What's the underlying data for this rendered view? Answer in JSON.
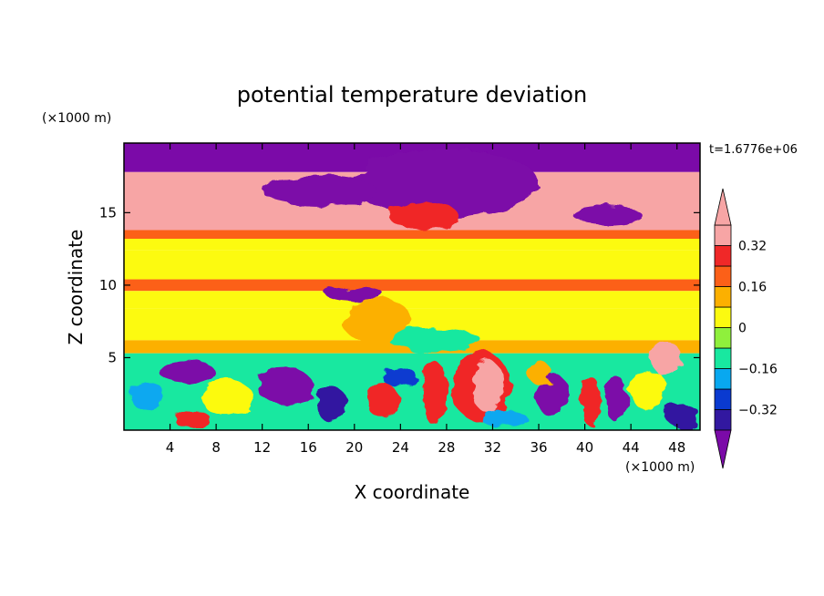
{
  "chart_data": {
    "type": "heatmap",
    "title": "potential temperature deviation",
    "xlabel": "X coordinate",
    "ylabel": "Z coordinate",
    "x_unit": "(×1000 m)",
    "y_unit": "(×1000 m)",
    "time_label": "t=1.6776e+06",
    "xlim": [
      0,
      50
    ],
    "ylim": [
      0,
      19.8
    ],
    "x_ticks": [
      4,
      8,
      12,
      16,
      20,
      24,
      28,
      32,
      36,
      40,
      44,
      48
    ],
    "y_ticks": [
      5,
      10,
      15
    ],
    "x_tick_labels": [
      "4",
      "8",
      "12",
      "16",
      "20",
      "24",
      "28",
      "32",
      "36",
      "40",
      "44",
      "48"
    ],
    "y_tick_labels": [
      "5",
      "10",
      "15"
    ],
    "colorbar": {
      "levels": [
        -0.4,
        -0.32,
        -0.24,
        -0.16,
        -0.08,
        0,
        0.08,
        0.16,
        0.24,
        0.32,
        0.4
      ],
      "tick_values": [
        0.32,
        0.16,
        0,
        -0.16,
        -0.32
      ],
      "tick_labels": [
        "0.32",
        "0.16",
        "0",
        "−0.16",
        "−0.32"
      ],
      "colors": [
        "#7b0aa8",
        "#3218a0",
        "#0a3ad0",
        "#08a8f0",
        "#18e8a0",
        "#8ff03c",
        "#fcfa10",
        "#fcb000",
        "#fc6018",
        "#f02828",
        "#f7a5a5"
      ],
      "extend": "both"
    },
    "layers": [
      {
        "z": [
          17.8,
          19.8
        ],
        "value": -0.45
      },
      {
        "z": [
          13.8,
          17.8
        ],
        "value": 0.45
      },
      {
        "z": [
          13.2,
          13.8
        ],
        "value": 0.2
      },
      {
        "z": [
          12.4,
          13.2
        ],
        "value": 0.04
      },
      {
        "z": [
          10.4,
          12.4
        ],
        "value": 0.02
      },
      {
        "z": [
          9.6,
          10.4
        ],
        "value": 0.2
      },
      {
        "z": [
          8.4,
          9.6
        ],
        "value": 0.04
      },
      {
        "z": [
          6.2,
          8.4
        ],
        "value": 0.0
      },
      {
        "z": [
          5.3,
          6.2
        ],
        "value": 0.08
      },
      {
        "z": [
          0,
          5.3
        ],
        "value": -0.1
      }
    ],
    "features": [
      {
        "x": 28,
        "z": 17.0,
        "rx": 8,
        "rz": 2.4,
        "value": -0.45
      },
      {
        "x": 17,
        "z": 16.5,
        "rx": 5,
        "rz": 1.0,
        "value": -0.45
      },
      {
        "x": 42,
        "z": 14.8,
        "rx": 3,
        "rz": 0.6,
        "value": -0.45
      },
      {
        "x": 26,
        "z": 14.8,
        "rx": 3,
        "rz": 1.0,
        "value": 0.3
      },
      {
        "x": 20,
        "z": 9.4,
        "rx": 2.5,
        "rz": 0.5,
        "value": -0.45
      },
      {
        "x": 22,
        "z": 7.5,
        "rx": 3,
        "rz": 1.6,
        "value": 0.12
      },
      {
        "x": 27,
        "z": 6.2,
        "rx": 4,
        "rz": 0.8,
        "value": -0.12
      },
      {
        "x": 31,
        "z": 3.0,
        "rx": 2.6,
        "rz": 2.4,
        "value": 0.3
      },
      {
        "x": 31.6,
        "z": 3.0,
        "rx": 1.4,
        "rz": 1.8,
        "value": 0.45
      },
      {
        "x": 27,
        "z": 2.5,
        "rx": 1.1,
        "rz": 2.2,
        "value": 0.3
      },
      {
        "x": 37.2,
        "z": 2.4,
        "rx": 1.4,
        "rz": 1.5,
        "value": -0.45
      },
      {
        "x": 40.5,
        "z": 2.0,
        "rx": 0.9,
        "rz": 1.7,
        "value": 0.3
      },
      {
        "x": 42.8,
        "z": 2.1,
        "rx": 0.9,
        "rz": 1.6,
        "value": -0.45
      },
      {
        "x": 47,
        "z": 5.0,
        "rx": 1.3,
        "rz": 1.2,
        "value": 0.45
      },
      {
        "x": 5.5,
        "z": 4.0,
        "rx": 2.4,
        "rz": 0.8,
        "value": -0.45
      },
      {
        "x": 14,
        "z": 3.0,
        "rx": 2.5,
        "rz": 1.2,
        "value": -0.45
      },
      {
        "x": 9,
        "z": 2.2,
        "rx": 2.2,
        "rz": 1.3,
        "value": 0.06
      },
      {
        "x": 22.5,
        "z": 2.0,
        "rx": 1.4,
        "rz": 1.2,
        "value": 0.3
      },
      {
        "x": 18,
        "z": 1.8,
        "rx": 1.4,
        "rz": 1.2,
        "value": -0.4
      },
      {
        "x": 45.5,
        "z": 2.8,
        "rx": 1.6,
        "rz": 1.4,
        "value": 0.02
      },
      {
        "x": 48.5,
        "z": 1.0,
        "rx": 1.5,
        "rz": 0.8,
        "value": -0.4
      },
      {
        "x": 6,
        "z": 0.7,
        "rx": 1.6,
        "rz": 0.6,
        "value": 0.3
      },
      {
        "x": 33,
        "z": 0.8,
        "rx": 2.0,
        "rz": 0.6,
        "value": -0.2
      },
      {
        "x": 2,
        "z": 2.4,
        "rx": 1.5,
        "rz": 1.0,
        "value": -0.18
      },
      {
        "x": 24,
        "z": 3.6,
        "rx": 1.5,
        "rz": 0.7,
        "value": -0.25
      },
      {
        "x": 36,
        "z": 4.0,
        "rx": 1.0,
        "rz": 0.8,
        "value": 0.1
      }
    ]
  }
}
